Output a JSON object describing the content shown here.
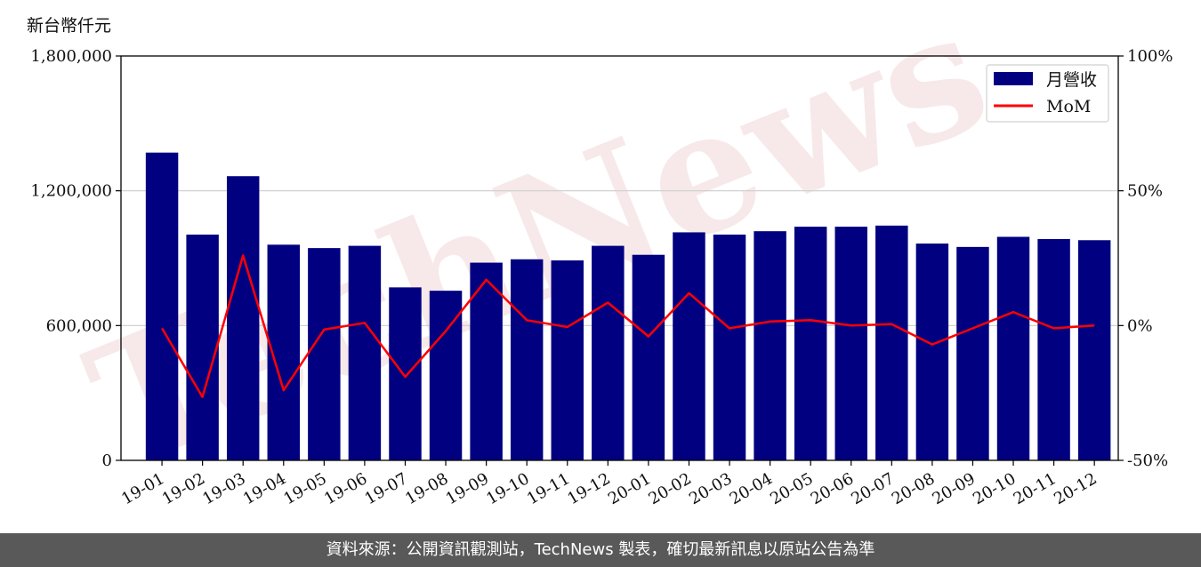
{
  "unit_label": "新台幣仟元",
  "footer": "資料來源：公開資訊觀測站，TechNews 製表，確切最新訊息以原站公告為準",
  "watermark": "TechNews",
  "colors": {
    "bar": "#000080",
    "line": "#ff0000",
    "footer_bg": "#595959",
    "watermark": "#f3dcdc"
  },
  "chart_data": {
    "type": "bar",
    "categories": [
      "19-01",
      "19-02",
      "19-03",
      "19-04",
      "19-05",
      "19-06",
      "19-07",
      "19-08",
      "19-09",
      "19-10",
      "19-11",
      "19-12",
      "20-01",
      "20-02",
      "20-03",
      "20-04",
      "20-05",
      "20-06",
      "20-07",
      "20-08",
      "20-09",
      "20-10",
      "20-11",
      "20-12"
    ],
    "series": [
      {
        "name": "月營收",
        "type": "bar",
        "axis": "left",
        "values": [
          1370000,
          1005000,
          1265000,
          960000,
          945000,
          955000,
          770000,
          755000,
          880000,
          895000,
          890000,
          955000,
          915000,
          1015000,
          1005000,
          1020000,
          1040000,
          1040000,
          1045000,
          965000,
          950000,
          995000,
          985000,
          980000
        ]
      },
      {
        "name": "MoM",
        "type": "line",
        "axis": "right",
        "values": [
          -1,
          -26.5,
          26,
          -24,
          -1.5,
          1,
          -19,
          -2,
          17,
          2,
          -0.5,
          8.5,
          -4,
          12,
          -1,
          1.5,
          2,
          0,
          0.5,
          -7,
          -1,
          5,
          -1,
          0
        ]
      }
    ],
    "y_left": {
      "lim": [
        0,
        1800000
      ],
      "ticks": [
        "0",
        "600,000",
        "1,200,000",
        "1,800,000"
      ],
      "tick_values": [
        0,
        600000,
        1200000,
        1800000
      ]
    },
    "y_right": {
      "lim": [
        -50,
        100
      ],
      "ticks": [
        "-50%",
        "0%",
        "50%",
        "100%"
      ],
      "tick_values": [
        -50,
        0,
        50,
        100
      ]
    },
    "grid": "horizontal",
    "legend": {
      "position": "top-right",
      "entries": [
        "月營收",
        "MoM"
      ]
    }
  }
}
